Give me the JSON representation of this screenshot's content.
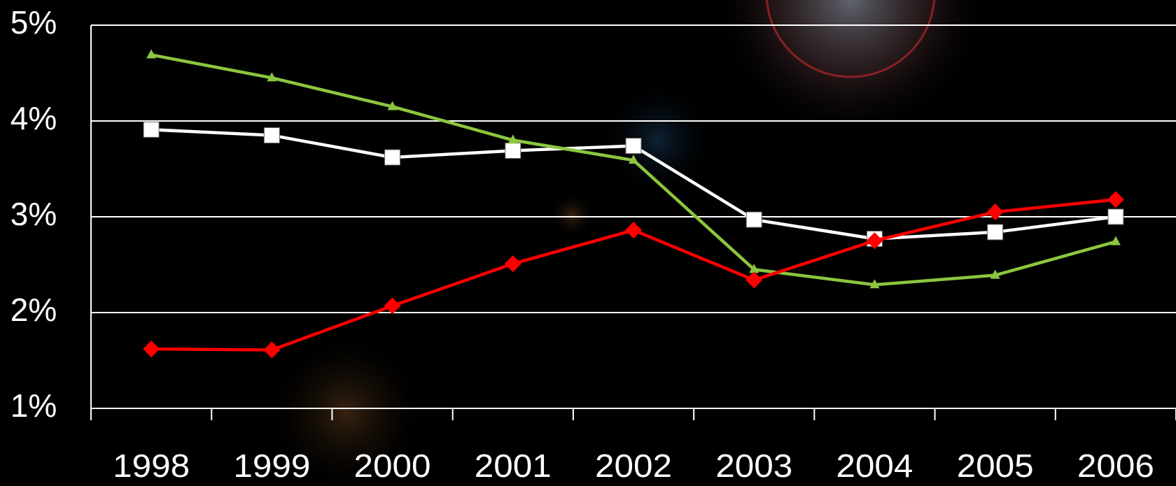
{
  "chart_data": {
    "type": "line",
    "categories": [
      "1998",
      "1999",
      "2000",
      "2001",
      "2002",
      "2003",
      "2004",
      "2005",
      "2006"
    ],
    "series": [
      {
        "color": "#ffffff",
        "marker": "square",
        "values": [
          3.91,
          3.85,
          3.62,
          3.69,
          3.74,
          2.97,
          2.77,
          2.84,
          3.0
        ]
      },
      {
        "color": "#8cc63f",
        "marker": "triangle",
        "values": [
          4.69,
          4.45,
          4.15,
          3.8,
          3.59,
          2.45,
          2.29,
          2.39,
          2.74
        ]
      },
      {
        "color": "#ff0000",
        "marker": "diamond",
        "values": [
          1.62,
          1.61,
          2.07,
          2.51,
          2.86,
          2.34,
          2.75,
          3.05,
          3.18
        ]
      }
    ],
    "ylim": [
      1,
      5
    ],
    "yticks": [
      {
        "value": 1,
        "label": "1%"
      },
      {
        "value": 2,
        "label": "2%"
      },
      {
        "value": 3,
        "label": "3%"
      },
      {
        "value": 4,
        "label": "4%"
      },
      {
        "value": 5,
        "label": "5%"
      }
    ],
    "grid": true
  }
}
